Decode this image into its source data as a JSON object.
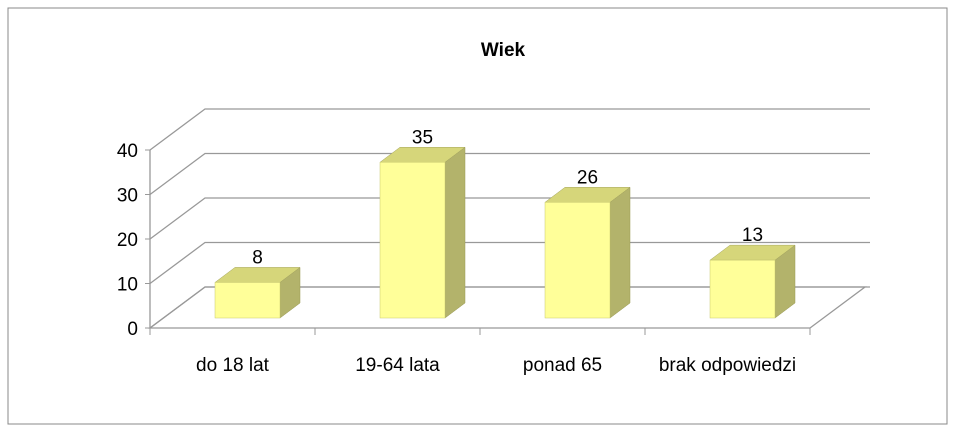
{
  "chart_data": {
    "type": "bar3d",
    "title": "Wiek",
    "categories": [
      "do 18 lat",
      "19-64 lata",
      "ponad 65",
      "brak odpowiedzi"
    ],
    "values": [
      8,
      35,
      26,
      13
    ],
    "color": "#ffff99",
    "ylim": [
      0,
      40
    ],
    "yticks": [
      0,
      10,
      20,
      30,
      40
    ],
    "grid": true
  }
}
